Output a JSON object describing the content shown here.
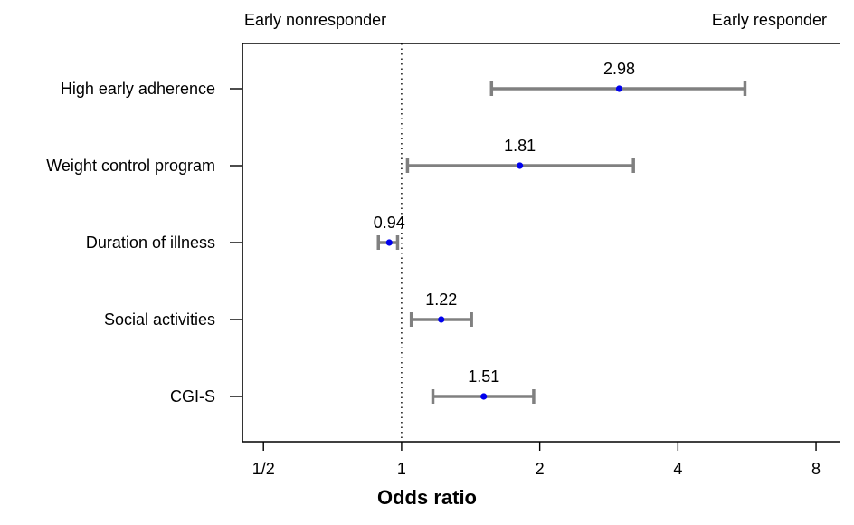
{
  "chart_data": {
    "type": "forest",
    "title": "",
    "xlabel": "Odds ratio",
    "ylabel": "",
    "x_scale": "log2",
    "xlim": [
      0.45,
      9.0
    ],
    "reference_line": 1,
    "annotation_left": "Early nonresponder",
    "annotation_right": "Early responder",
    "x_ticks": [
      {
        "value": 0.5,
        "label": "1/2"
      },
      {
        "value": 1,
        "label": "1"
      },
      {
        "value": 2,
        "label": "2"
      },
      {
        "value": 4,
        "label": "4"
      },
      {
        "value": 8,
        "label": "8"
      }
    ],
    "rows": [
      {
        "label": "High early adherence",
        "or": 2.98,
        "or_label": "2.98",
        "lower": 1.57,
        "upper": 5.6
      },
      {
        "label": "Weight control program",
        "or": 1.81,
        "or_label": "1.81",
        "lower": 1.03,
        "upper": 3.2
      },
      {
        "label": "Duration of illness",
        "or": 0.94,
        "or_label": "0.94",
        "lower": 0.89,
        "upper": 0.98
      },
      {
        "label": "Social activities",
        "or": 1.22,
        "or_label": "1.22",
        "lower": 1.05,
        "upper": 1.42
      },
      {
        "label": "CGI-S",
        "or": 1.51,
        "or_label": "1.51",
        "lower": 1.17,
        "upper": 1.94
      }
    ],
    "colors": {
      "interval": "#808080",
      "point": "#0000ee",
      "axis": "#000000"
    }
  }
}
